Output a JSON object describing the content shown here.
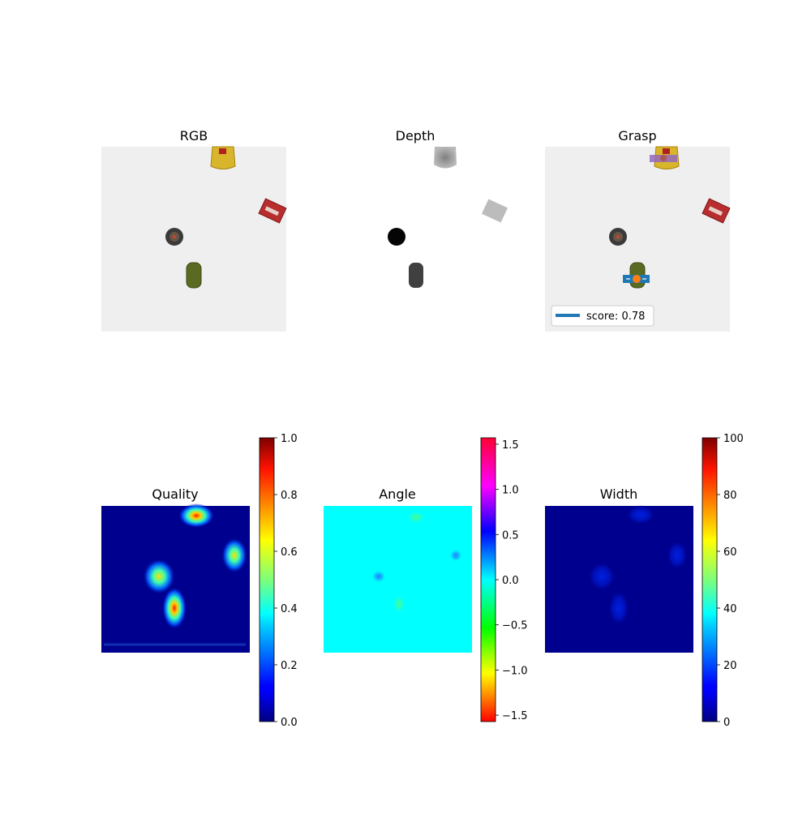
{
  "panels": {
    "rgb": {
      "title": "RGB"
    },
    "depth": {
      "title": "Depth"
    },
    "grasp": {
      "title": "Grasp",
      "legend": "score: 0.78"
    },
    "quality": {
      "title": "Quality"
    },
    "angle": {
      "title": "Angle"
    },
    "width": {
      "title": "Width"
    }
  },
  "chart_data": [
    {
      "type": "image",
      "title": "RGB"
    },
    {
      "type": "image",
      "title": "Depth"
    },
    {
      "type": "image",
      "title": "Grasp",
      "legend": [
        "score: 0.78"
      ]
    },
    {
      "type": "heatmap",
      "title": "Quality",
      "colormap": "jet",
      "colorbar": {
        "range": [
          0.0,
          1.0
        ],
        "ticks": [
          "0.0",
          "0.2",
          "0.4",
          "0.6",
          "0.8",
          "1.0"
        ]
      }
    },
    {
      "type": "heatmap",
      "title": "Angle",
      "colormap": "hsv",
      "colorbar": {
        "range": [
          -1.5708,
          1.5708
        ],
        "ticks": [
          "−1.5",
          "−1.0",
          "−0.5",
          "0.0",
          "0.5",
          "1.0",
          "1.5"
        ]
      }
    },
    {
      "type": "heatmap",
      "title": "Width",
      "colormap": "jet",
      "colorbar": {
        "range": [
          0,
          100
        ],
        "ticks": [
          "0",
          "20",
          "40",
          "60",
          "80",
          "100"
        ]
      }
    }
  ],
  "colors": {
    "table": "#efefef",
    "grasp_primary": "#1f77b4",
    "grasp_secondary": "#9467bd",
    "grasp_center": "#ff7f0e",
    "heat_background": "#00008f",
    "angle_background": "#00ffff"
  }
}
